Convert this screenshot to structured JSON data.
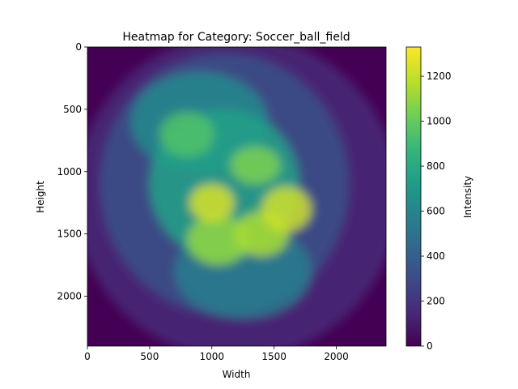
{
  "chart_data": {
    "type": "heatmap",
    "title": "Heatmap for Category: Soccer_ball_field",
    "xlabel": "Width",
    "ylabel": "Height",
    "colorbar_label": "Intensity",
    "colormap": "viridis",
    "xlim": [
      0,
      2400
    ],
    "ylim": [
      2400,
      0
    ],
    "x_ticks": [
      0,
      500,
      1000,
      1500,
      2000
    ],
    "y_ticks": [
      0,
      500,
      1000,
      1500,
      2000
    ],
    "colorbar_range": [
      0,
      1330
    ],
    "colorbar_ticks": [
      0,
      200,
      400,
      600,
      800,
      1000,
      1200
    ],
    "regions": [
      {
        "x": 1000,
        "y": 1250,
        "rx": 180,
        "ry": 150,
        "value": 1250
      },
      {
        "x": 1600,
        "y": 1300,
        "rx": 200,
        "ry": 180,
        "value": 1230
      },
      {
        "x": 1350,
        "y": 950,
        "rx": 200,
        "ry": 150,
        "value": 1050
      },
      {
        "x": 1400,
        "y": 1500,
        "rx": 220,
        "ry": 180,
        "value": 1150
      },
      {
        "x": 1050,
        "y": 1550,
        "rx": 250,
        "ry": 200,
        "value": 1100
      },
      {
        "x": 800,
        "y": 700,
        "rx": 220,
        "ry": 180,
        "value": 950
      },
      {
        "x": 1100,
        "y": 1100,
        "rx": 600,
        "ry": 600,
        "value": 750
      },
      {
        "x": 900,
        "y": 600,
        "rx": 550,
        "ry": 400,
        "value": 620
      },
      {
        "x": 1250,
        "y": 1800,
        "rx": 550,
        "ry": 380,
        "value": 560
      },
      {
        "x": 1100,
        "y": 1100,
        "rx": 1000,
        "ry": 1050,
        "value": 330
      },
      {
        "x": 1200,
        "y": 1200,
        "rx": 1300,
        "ry": 1300,
        "value": 150
      }
    ]
  }
}
